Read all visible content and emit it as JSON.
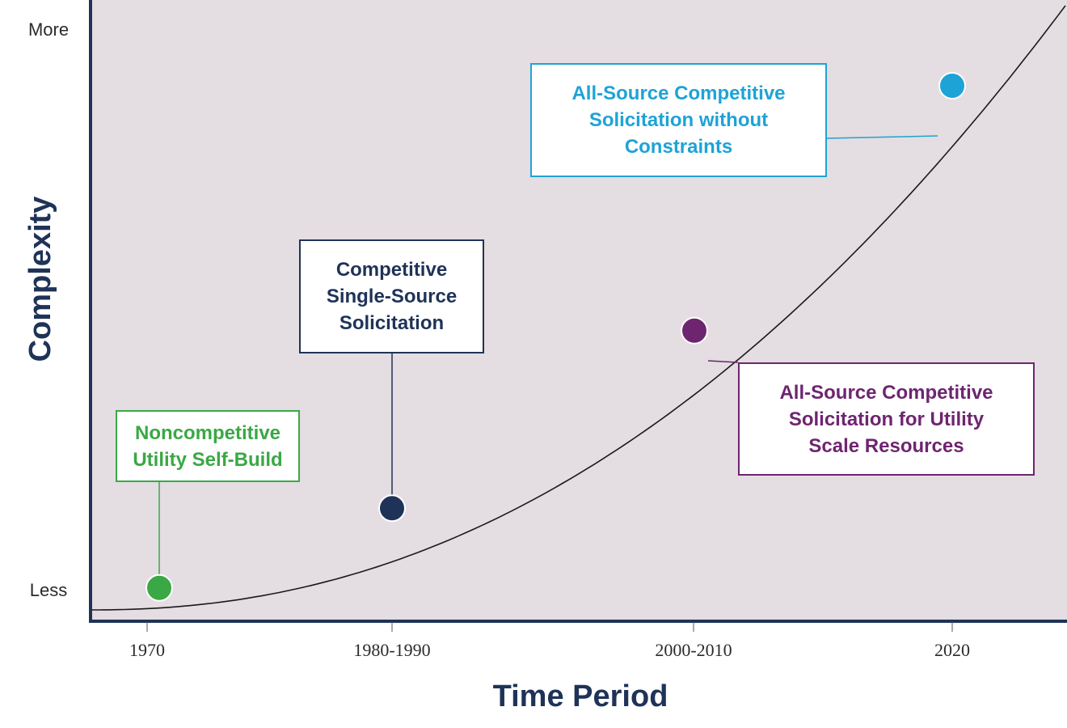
{
  "chart_data": {
    "type": "line",
    "title": "",
    "xlabel": "Time Period",
    "ylabel": "Complexity",
    "x_ticks": [
      "1970",
      "1980-1990",
      "2000-2010",
      "2020"
    ],
    "y_ticks": [
      "Less",
      "More"
    ],
    "background_color": "#e4dde1",
    "axis_color": "#1f3358",
    "curve_color": "#1a1a1a",
    "stages": [
      {
        "label": "Noncompetitive\nUtility Self-Build",
        "period": "1970",
        "complexity": 0.04,
        "color": "#3aa845"
      },
      {
        "label": "Competitive\nSingle-Source\nSolicitation",
        "period": "1980-1990",
        "complexity": 0.17,
        "color": "#1f3358"
      },
      {
        "label": "All-Source Competitive\nSolicitation for Utility\nScale Resources",
        "period": "2000-2010",
        "complexity": 0.46,
        "color": "#6e2570"
      },
      {
        "label": "All-Source Competitive\nSolicitation without\nConstraints",
        "period": "2020",
        "complexity": 0.86,
        "color": "#1ea3d6"
      }
    ]
  }
}
